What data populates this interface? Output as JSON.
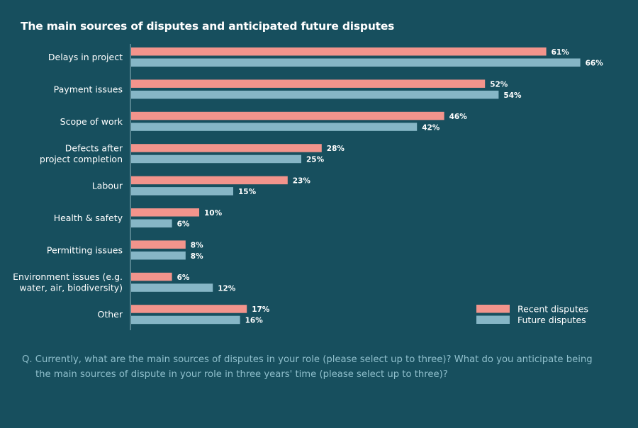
{
  "chart_data": {
    "type": "bar",
    "orientation": "horizontal",
    "title": "The main sources of disputes and anticipated future disputes",
    "categories": [
      [
        "Delays in project"
      ],
      [
        "Payment issues"
      ],
      [
        "Scope of work"
      ],
      [
        "Defects after",
        "project completion"
      ],
      [
        "Labour"
      ],
      [
        "Health & safety"
      ],
      [
        "Permitting issues"
      ],
      [
        "Environment issues (e.g.",
        "water, air, biodiversity)"
      ],
      [
        "Other"
      ]
    ],
    "series": [
      {
        "name": "Recent disputes",
        "color": "#f2948c",
        "values": [
          61,
          52,
          46,
          28,
          23,
          10,
          8,
          6,
          17
        ]
      },
      {
        "name": "Future disputes",
        "color": "#86b6c6",
        "values": [
          66,
          54,
          42,
          25,
          15,
          6,
          8,
          12,
          16
        ]
      }
    ],
    "value_suffix": "%",
    "xlim": [
      0,
      70
    ],
    "grid": false,
    "legend_position": "bottom-right"
  },
  "footnote": {
    "line1": "Q. Currently, what are the main sources of disputes in your role (please select up to three)? What do you anticipate being",
    "line2": "the main sources of dispute in your role in three years' time (please select up to three)?"
  }
}
